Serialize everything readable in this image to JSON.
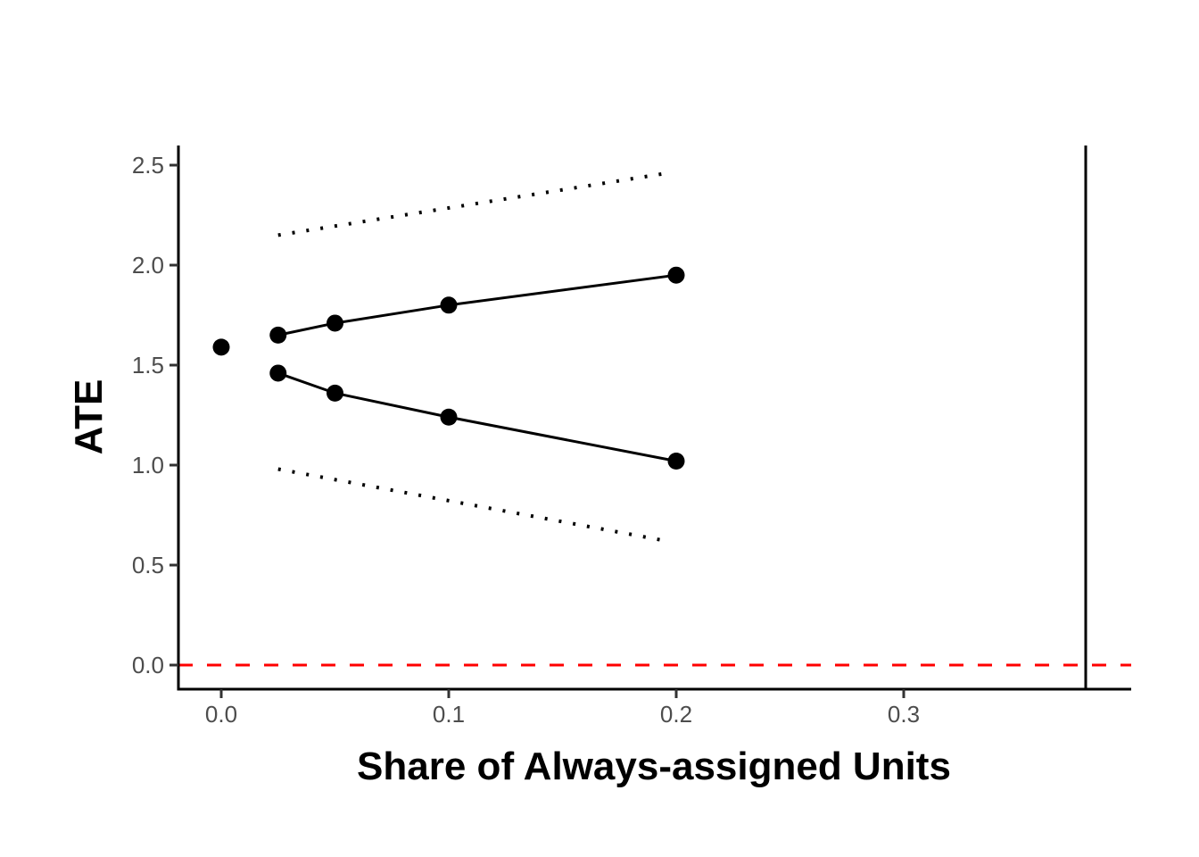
{
  "chart_data": {
    "type": "line",
    "title": "",
    "xlabel": "Share of Always-assigned Units",
    "ylabel": "ATE",
    "xlim": [
      -0.019,
      0.399
    ],
    "ylim": [
      -0.12,
      2.6
    ],
    "x_ticks": [
      0.0,
      0.1,
      0.2,
      0.3
    ],
    "x_tick_labels": [
      "0.0",
      "0.1",
      "0.2",
      "0.3"
    ],
    "y_ticks": [
      0.0,
      0.5,
      1.0,
      1.5,
      2.0,
      2.5
    ],
    "y_tick_labels": [
      "0.0",
      "0.5",
      "1.0",
      "1.5",
      "2.0",
      "2.5"
    ],
    "grid": false,
    "legend": null,
    "point_estimate": {
      "x": 0.0,
      "y": 1.59
    },
    "series": [
      {
        "name": "upper bound",
        "style": "solid",
        "markers": true,
        "color": "#000000",
        "x": [
          0.025,
          0.05,
          0.1,
          0.2
        ],
        "y": [
          1.65,
          1.71,
          1.8,
          1.95
        ]
      },
      {
        "name": "lower bound",
        "style": "solid",
        "markers": true,
        "color": "#000000",
        "x": [
          0.025,
          0.05,
          0.1,
          0.2
        ],
        "y": [
          1.46,
          1.36,
          1.24,
          1.02
        ]
      },
      {
        "name": "upper CI",
        "style": "dotted",
        "markers": false,
        "color": "#000000",
        "x": [
          0.025,
          0.196
        ],
        "y": [
          2.15,
          2.46
        ]
      },
      {
        "name": "lower CI",
        "style": "dotted",
        "markers": false,
        "color": "#000000",
        "x": [
          0.025,
          0.196
        ],
        "y": [
          0.98,
          0.62
        ]
      }
    ],
    "reference_lines": [
      {
        "orientation": "horizontal",
        "value": 0.0,
        "style": "dashed",
        "color": "#ff0000"
      },
      {
        "orientation": "vertical",
        "value": 0.38,
        "style": "solid",
        "color": "#000000"
      }
    ]
  }
}
